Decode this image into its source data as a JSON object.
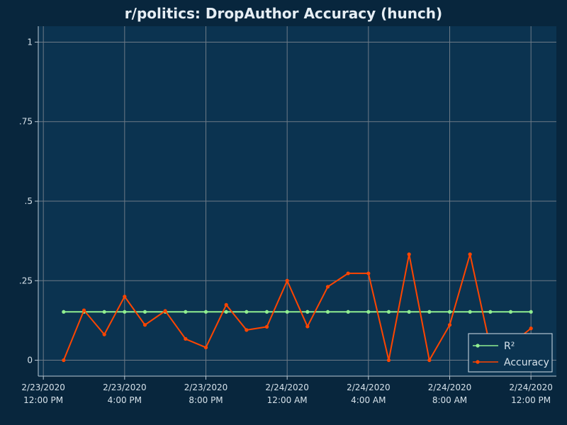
{
  "chart_data": {
    "type": "line",
    "title": "r/politics: DropAuthor Accuracy (hunch)",
    "xlabel": "",
    "ylabel": "",
    "x_ticks": [
      [
        "2/23/2020",
        "12:00 PM"
      ],
      [
        "2/23/2020",
        "4:00 PM"
      ],
      [
        "2/23/2020",
        "8:00 PM"
      ],
      [
        "2/24/2020",
        "12:00 AM"
      ],
      [
        "2/24/2020",
        "4:00 AM"
      ],
      [
        "2/24/2020",
        "8:00 AM"
      ],
      [
        "2/24/2020",
        "12:00 PM"
      ]
    ],
    "y_ticks": [
      {
        "value": 0,
        "label": "0"
      },
      {
        "value": 0.25,
        "label": ".25"
      },
      {
        "value": 0.5,
        "label": ".5"
      },
      {
        "value": 0.75,
        "label": ".75"
      },
      {
        "value": 1,
        "label": "1"
      }
    ],
    "ylim": [
      -0.05,
      1.05
    ],
    "xlim": [
      "2/23/2020 11:45",
      "2/24/2020 13:15"
    ],
    "grid": true,
    "legend_position": "bottom-right",
    "x": [
      "2/23/2020 13:00",
      "2/23/2020 14:00",
      "2/23/2020 15:00",
      "2/23/2020 16:00",
      "2/23/2020 17:00",
      "2/23/2020 18:00",
      "2/23/2020 19:00",
      "2/23/2020 20:00",
      "2/23/2020 21:00",
      "2/23/2020 22:00",
      "2/23/2020 23:00",
      "2/24/2020 00:00",
      "2/24/2020 01:00",
      "2/24/2020 02:00",
      "2/24/2020 03:00",
      "2/24/2020 04:00",
      "2/24/2020 05:00",
      "2/24/2020 06:00",
      "2/24/2020 07:00",
      "2/24/2020 08:00",
      "2/24/2020 09:00",
      "2/24/2020 10:00",
      "2/24/2020 11:00",
      "2/24/2020 12:00"
    ],
    "series": [
      {
        "name": "R²",
        "color": "#90ee90",
        "values": [
          0.152,
          0.152,
          0.152,
          0.152,
          0.152,
          0.152,
          0.152,
          0.152,
          0.152,
          0.152,
          0.152,
          0.152,
          0.152,
          0.152,
          0.152,
          0.152,
          0.152,
          0.152,
          0.152,
          0.152,
          0.152,
          0.152,
          0.152,
          0.152
        ]
      },
      {
        "name": "Accuracy",
        "color": "#ff4500",
        "values": [
          0,
          0.157,
          0.081,
          0.2,
          0.111,
          0.155,
          0.067,
          0.04,
          0.174,
          0.095,
          0.105,
          0.25,
          0.106,
          0.231,
          0.273,
          0.273,
          0,
          0.333,
          0,
          0.111,
          0.333,
          0.04,
          0.05,
          0.1
        ]
      }
    ]
  },
  "colors": {
    "page_background": "#08263d",
    "plot_background": "#0b3350",
    "grid": "#6c7a86",
    "axis": "#b8c8d4"
  }
}
